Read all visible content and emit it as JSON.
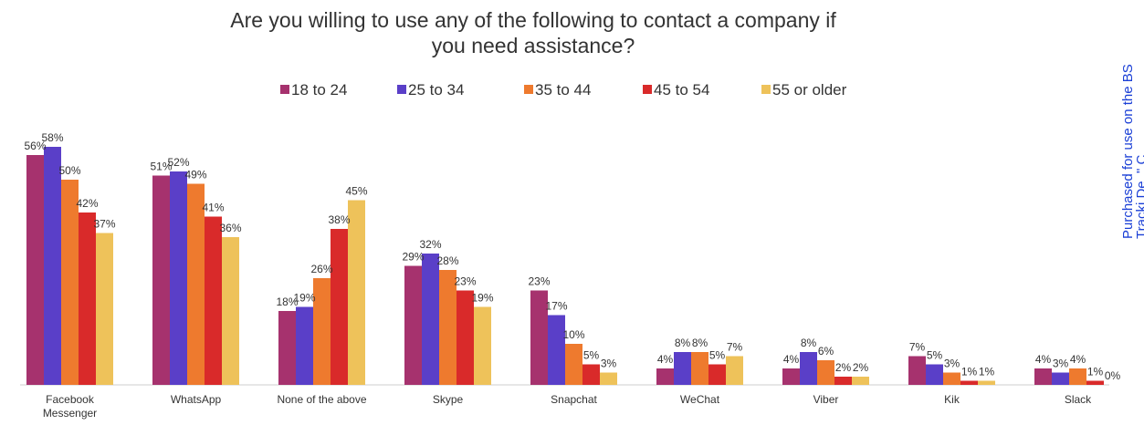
{
  "chart_data": {
    "type": "bar",
    "title_lines": [
      "Are you willing to use any of the following to contact a company if",
      "you need assistance?"
    ],
    "xlabel": "",
    "ylabel": "",
    "ylim": [
      0,
      62
    ],
    "grid": false,
    "legend_position": "top",
    "categories": [
      [
        "Facebook",
        "Messenger"
      ],
      [
        "WhatsApp"
      ],
      [
        "None of the above"
      ],
      [
        "Skype"
      ],
      [
        "Snapchat"
      ],
      [
        "WeChat"
      ],
      [
        "Viber"
      ],
      [
        "Kik"
      ],
      [
        "Slack"
      ]
    ],
    "value_suffix": "%",
    "series": [
      {
        "name": "18 to 24",
        "color": "#a6326e",
        "values": [
          56,
          51,
          18,
          29,
          23,
          4,
          4,
          7,
          4
        ]
      },
      {
        "name": "25 to 34",
        "color": "#5a3fc8",
        "values": [
          58,
          52,
          19,
          32,
          17,
          8,
          8,
          5,
          3
        ]
      },
      {
        "name": "35 to 44",
        "color": "#ee7a2e",
        "values": [
          50,
          49,
          26,
          28,
          10,
          8,
          6,
          3,
          4
        ]
      },
      {
        "name": "45 to 54",
        "color": "#d92a2a",
        "values": [
          42,
          41,
          38,
          23,
          5,
          5,
          2,
          1,
          1
        ]
      },
      {
        "name": "55 or older",
        "color": "#eec25a",
        "values": [
          37,
          36,
          45,
          19,
          3,
          7,
          2,
          1,
          0
        ]
      }
    ]
  },
  "watermark_lines": [
    "Purchased for use on the BS",
    "Tracki     De     .\" C"
  ]
}
